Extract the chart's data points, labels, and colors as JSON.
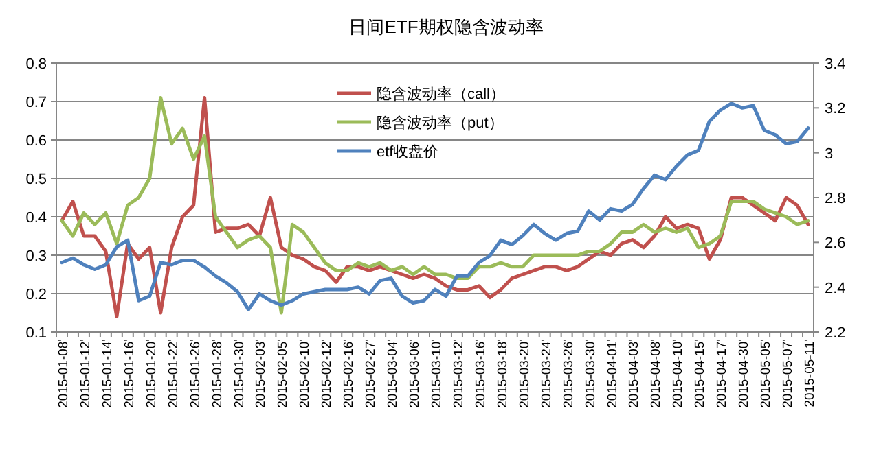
{
  "chart_data": {
    "type": "line",
    "title": "日间ETF期权隐含波动率",
    "categories": [
      "2015-01-08'",
      null,
      "2015-01-12'",
      null,
      "2015-01-14'",
      null,
      "2015-01-16'",
      null,
      "2015-01-20'",
      null,
      "2015-01-22'",
      null,
      "2015-01-26'",
      null,
      "2015-01-28'",
      null,
      "2015-01-30'",
      null,
      "2015-02-03'",
      null,
      "2015-02-05'",
      null,
      "2015-02-10'",
      null,
      "2015-02-12'",
      null,
      "2015-02-16'",
      null,
      "2015-02-27'",
      null,
      "2015-03-04'",
      null,
      "2015-03-06'",
      null,
      "2015-03-10'",
      null,
      "2015-03-12'",
      null,
      "2015-03-16'",
      null,
      "2015-03-18'",
      null,
      "2015-03-20'",
      null,
      "2015-03-24'",
      null,
      "2015-03-26'",
      null,
      "2015-03-30'",
      null,
      "2015-04-01'",
      null,
      "2015-04-03'",
      null,
      "2015-04-08'",
      null,
      "2015-04-10'",
      null,
      "2015-04-15'",
      null,
      "2015-04-17'",
      null,
      "2015-04-30'",
      null,
      "2015-05-05'",
      null,
      "2015-05-07'",
      null,
      "2015-05-11'"
    ],
    "series": [
      {
        "name": "隐含波动率（call）",
        "color": "#c0504d",
        "values": [
          0.39,
          0.44,
          0.35,
          0.35,
          0.31,
          0.14,
          0.33,
          0.29,
          0.32,
          0.15,
          0.32,
          0.4,
          0.43,
          0.71,
          0.36,
          0.37,
          0.37,
          0.38,
          0.35,
          0.45,
          0.32,
          0.3,
          0.29,
          0.27,
          0.26,
          0.23,
          0.27,
          0.27,
          0.26,
          0.27,
          0.26,
          0.25,
          0.24,
          0.25,
          0.24,
          0.22,
          0.21,
          0.21,
          0.22,
          0.19,
          0.21,
          0.24,
          0.25,
          0.26,
          0.27,
          0.27,
          0.26,
          0.27,
          0.29,
          0.31,
          0.3,
          0.33,
          0.34,
          0.32,
          0.35,
          0.4,
          0.37,
          0.38,
          0.37,
          0.29,
          0.34,
          0.45,
          0.45,
          0.43,
          0.41,
          0.39,
          0.45,
          0.43,
          0.38
        ]
      },
      {
        "name": "隐含波动率（put）",
        "color": "#9bbb59",
        "values": [
          0.39,
          0.35,
          0.41,
          0.38,
          0.41,
          0.33,
          0.43,
          0.45,
          0.5,
          0.71,
          0.59,
          0.63,
          0.55,
          0.61,
          0.4,
          0.36,
          0.32,
          0.34,
          0.35,
          0.32,
          0.15,
          0.38,
          0.36,
          0.32,
          0.28,
          0.26,
          0.26,
          0.28,
          0.27,
          0.28,
          0.26,
          0.27,
          0.25,
          0.27,
          0.25,
          0.25,
          0.24,
          0.24,
          0.27,
          0.27,
          0.28,
          0.27,
          0.27,
          0.3,
          0.3,
          0.3,
          0.3,
          0.3,
          0.31,
          0.31,
          0.33,
          0.36,
          0.36,
          0.38,
          0.36,
          0.37,
          0.36,
          0.37,
          0.32,
          0.33,
          0.35,
          0.44,
          0.44,
          0.44,
          0.42,
          0.41,
          0.4,
          0.38,
          0.39
        ]
      },
      {
        "name": "etf收盘价",
        "color": "#4f81bd",
        "axis": "y2",
        "values": [
          2.51,
          2.53,
          2.5,
          2.48,
          2.5,
          2.58,
          2.61,
          2.34,
          2.36,
          2.51,
          2.5,
          2.52,
          2.52,
          2.49,
          2.45,
          2.42,
          2.38,
          2.3,
          2.37,
          2.34,
          2.32,
          2.34,
          2.37,
          2.38,
          2.39,
          2.39,
          2.39,
          2.4,
          2.37,
          2.43,
          2.44,
          2.36,
          2.33,
          2.34,
          2.39,
          2.36,
          2.45,
          2.45,
          2.51,
          2.54,
          2.61,
          2.59,
          2.63,
          2.68,
          2.64,
          2.61,
          2.64,
          2.65,
          2.74,
          2.7,
          2.75,
          2.74,
          2.77,
          2.84,
          2.9,
          2.88,
          2.94,
          2.99,
          3.01,
          3.14,
          3.19,
          3.22,
          3.2,
          3.21,
          3.1,
          3.08,
          3.04,
          3.05,
          3.11
        ]
      }
    ],
    "ylim": [
      0.1,
      0.8
    ],
    "yticks": [
      0.1,
      0.2,
      0.3,
      0.4,
      0.5,
      0.6,
      0.7,
      0.8
    ],
    "y2lim": [
      2.2,
      3.4
    ],
    "y2ticks": [
      2.2,
      2.4,
      2.6,
      2.8,
      3,
      3.2,
      3.4
    ],
    "grid": "y",
    "legend": "top"
  }
}
